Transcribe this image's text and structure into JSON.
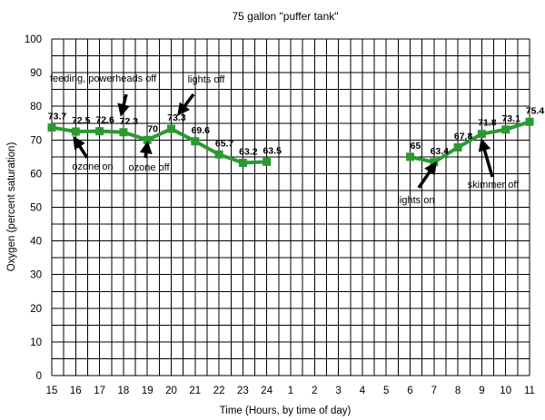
{
  "chart_data": {
    "type": "line",
    "title": "75 gallon \"puffer tank\"",
    "xlabel": "Time (Hours, by time of day)",
    "ylabel": "Oxygen (percent saturation)",
    "ylim": [
      0,
      100
    ],
    "yticks": [
      "0",
      "10",
      "20",
      "30",
      "40",
      "50",
      "60",
      "70",
      "80",
      "90",
      "100"
    ],
    "x_ticks": [
      "15",
      "16",
      "17",
      "18",
      "19",
      "20",
      "21",
      "22",
      "23",
      "24",
      "1",
      "2",
      "3",
      "4",
      "5",
      "6",
      "7",
      "8",
      "9",
      "10",
      "11"
    ],
    "grid": true,
    "series_color": "#2a9a30",
    "series": [
      {
        "segments": [
          {
            "x": [
              "15",
              "16",
              "17",
              "18",
              "19",
              "20",
              "21",
              "22",
              "23",
              "24"
            ],
            "y": [
              73.7,
              72.5,
              72.6,
              72.3,
              70,
              73.3,
              69.6,
              65.7,
              63.2,
              63.5
            ],
            "labels": [
              "73.7",
              "72.5",
              "72.6",
              "72.3",
              "70",
              "73.3",
              "69.6",
              "65.7",
              "63.2",
              "63.5"
            ]
          },
          {
            "x": [
              "6",
              "7",
              "8",
              "9",
              "10",
              "11"
            ],
            "y": [
              65,
              63.4,
              67.8,
              71.8,
              73.1,
              75.4
            ],
            "labels": [
              "65",
              "63.4",
              "67.8",
              "71.8",
              "73.1",
              "75.4"
            ]
          }
        ]
      }
    ],
    "annotations": [
      {
        "text": "feeding, powerheads off",
        "x": "18",
        "y": 72.3
      },
      {
        "text": "ozone on",
        "x": "16",
        "y": 72.5
      },
      {
        "text": "ozone off",
        "x": "19",
        "y": 70
      },
      {
        "text": "lights off",
        "x": "20",
        "y": 73.3
      },
      {
        "text": "lights on",
        "x": "7",
        "y": 63.4
      },
      {
        "text": "skimmer off",
        "x": "9",
        "y": 71.8
      }
    ]
  }
}
